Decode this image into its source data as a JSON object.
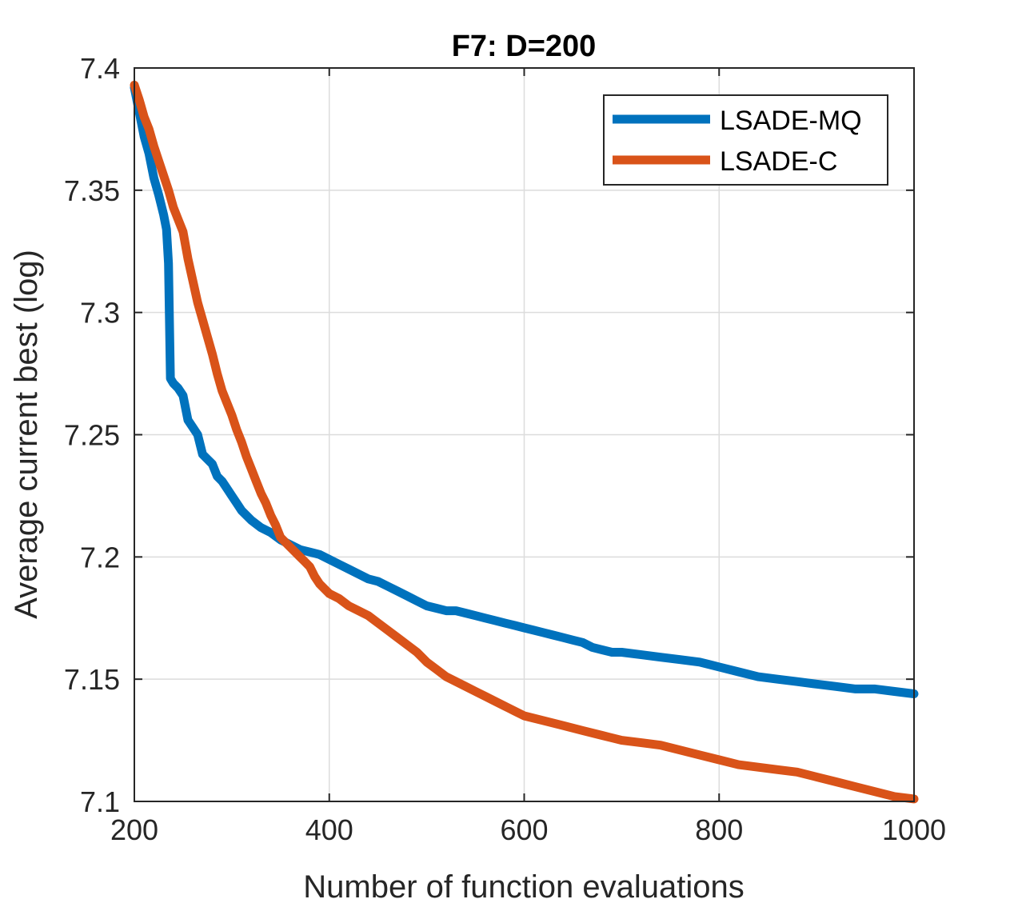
{
  "chart_data": {
    "type": "line",
    "title": "F7: D=200",
    "xlabel": "Number of function evaluations",
    "ylabel": "Average current best (log)",
    "xlim": [
      200,
      1000
    ],
    "ylim": [
      7.1,
      7.4
    ],
    "xticks": [
      200,
      400,
      600,
      800,
      1000
    ],
    "xtick_labels": [
      "200",
      "400",
      "600",
      "800",
      "1000"
    ],
    "yticks": [
      7.1,
      7.15,
      7.2,
      7.25,
      7.3,
      7.35,
      7.4
    ],
    "ytick_labels": [
      "7.1",
      "7.15",
      "7.2",
      "7.25",
      "7.3",
      "7.35",
      "7.4"
    ],
    "grid": true,
    "legend_position": "top-right",
    "series": [
      {
        "name": "LSADE-MQ",
        "color": "#0072BD",
        "x": [
          200,
          205,
          210,
          215,
          220,
          225,
          230,
          233,
          235,
          237,
          240,
          245,
          250,
          255,
          260,
          265,
          270,
          275,
          280,
          285,
          290,
          295,
          300,
          305,
          310,
          320,
          330,
          340,
          350,
          360,
          370,
          380,
          390,
          400,
          410,
          420,
          430,
          440,
          450,
          460,
          470,
          480,
          490,
          500,
          510,
          520,
          530,
          540,
          550,
          560,
          570,
          580,
          590,
          600,
          610,
          620,
          630,
          640,
          650,
          660,
          670,
          680,
          690,
          700,
          720,
          740,
          760,
          780,
          800,
          820,
          840,
          860,
          880,
          900,
          920,
          940,
          960,
          980,
          1000
        ],
        "values": [
          7.392,
          7.382,
          7.372,
          7.365,
          7.355,
          7.348,
          7.34,
          7.334,
          7.32,
          7.273,
          7.271,
          7.269,
          7.266,
          7.256,
          7.253,
          7.25,
          7.242,
          7.24,
          7.238,
          7.233,
          7.231,
          7.228,
          7.225,
          7.222,
          7.219,
          7.215,
          7.212,
          7.21,
          7.207,
          7.205,
          7.203,
          7.202,
          7.201,
          7.199,
          7.197,
          7.195,
          7.193,
          7.191,
          7.19,
          7.188,
          7.186,
          7.184,
          7.182,
          7.18,
          7.179,
          7.178,
          7.178,
          7.177,
          7.176,
          7.175,
          7.174,
          7.173,
          7.172,
          7.171,
          7.17,
          7.169,
          7.168,
          7.167,
          7.166,
          7.165,
          7.163,
          7.162,
          7.161,
          7.161,
          7.16,
          7.159,
          7.158,
          7.157,
          7.155,
          7.153,
          7.151,
          7.15,
          7.149,
          7.148,
          7.147,
          7.146,
          7.146,
          7.145,
          7.144
        ]
      },
      {
        "name": "LSADE-C",
        "color": "#D95319",
        "x": [
          200,
          205,
          210,
          215,
          220,
          225,
          230,
          235,
          240,
          245,
          250,
          255,
          260,
          265,
          270,
          275,
          280,
          285,
          290,
          295,
          300,
          305,
          310,
          315,
          320,
          325,
          330,
          335,
          340,
          345,
          350,
          355,
          360,
          365,
          370,
          375,
          380,
          385,
          390,
          395,
          400,
          410,
          420,
          430,
          440,
          450,
          460,
          470,
          480,
          490,
          500,
          510,
          520,
          530,
          540,
          550,
          560,
          570,
          580,
          590,
          600,
          620,
          640,
          660,
          680,
          700,
          720,
          740,
          760,
          780,
          800,
          820,
          840,
          860,
          880,
          900,
          920,
          940,
          960,
          980,
          1000
        ],
        "values": [
          7.393,
          7.387,
          7.38,
          7.375,
          7.368,
          7.362,
          7.356,
          7.35,
          7.343,
          7.338,
          7.333,
          7.322,
          7.313,
          7.304,
          7.297,
          7.29,
          7.283,
          7.275,
          7.268,
          7.263,
          7.258,
          7.252,
          7.247,
          7.241,
          7.236,
          7.231,
          7.226,
          7.222,
          7.217,
          7.213,
          7.208,
          7.206,
          7.204,
          7.202,
          7.2,
          7.198,
          7.196,
          7.192,
          7.189,
          7.187,
          7.185,
          7.183,
          7.18,
          7.178,
          7.176,
          7.173,
          7.17,
          7.167,
          7.164,
          7.161,
          7.157,
          7.154,
          7.151,
          7.149,
          7.147,
          7.145,
          7.143,
          7.141,
          7.139,
          7.137,
          7.135,
          7.133,
          7.131,
          7.129,
          7.127,
          7.125,
          7.124,
          7.123,
          7.121,
          7.119,
          7.117,
          7.115,
          7.114,
          7.113,
          7.112,
          7.11,
          7.108,
          7.106,
          7.104,
          7.102,
          7.101
        ]
      }
    ]
  }
}
